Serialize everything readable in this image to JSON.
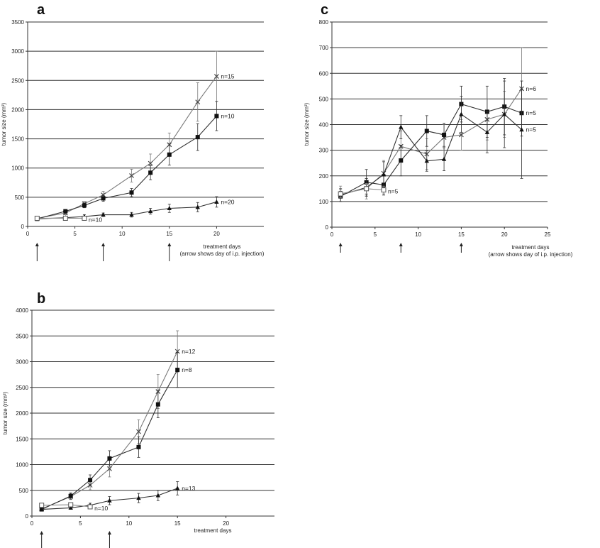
{
  "chart_data": [
    {
      "panel": "a",
      "type": "line",
      "xlabel": "treatment days",
      "note": "(arrow shows day of i.p. injection)",
      "ylabel": "tumor size (mm³)",
      "xlim": [
        0,
        25
      ],
      "ylim": [
        0,
        3500
      ],
      "xticks": [
        0,
        5,
        10,
        15,
        20
      ],
      "yticks": [
        0,
        500,
        1000,
        1500,
        2000,
        2500,
        3000,
        3500
      ],
      "grid": "horizontal",
      "injection_days": [
        1,
        8,
        15
      ],
      "series": [
        {
          "marker": "cross",
          "x": [
            1,
            4,
            6,
            8,
            11,
            13,
            15,
            18,
            20
          ],
          "y": [
            140,
            230,
            390,
            540,
            870,
            1080,
            1400,
            2130,
            2570
          ],
          "err": [
            20,
            30,
            40,
            60,
            110,
            160,
            200,
            330,
            430
          ],
          "end_label": "n=15"
        },
        {
          "marker": "square",
          "x": [
            1,
            4,
            6,
            8,
            11,
            13,
            15,
            18,
            20
          ],
          "y": [
            130,
            260,
            360,
            480,
            580,
            920,
            1230,
            1530,
            1890
          ],
          "err": [
            20,
            30,
            40,
            50,
            70,
            120,
            180,
            230,
            250
          ],
          "end_label": "n=10"
        },
        {
          "marker": "triangle",
          "x": [
            1,
            4,
            6,
            8,
            11,
            13,
            15,
            18,
            20
          ],
          "y": [
            130,
            150,
            170,
            200,
            200,
            260,
            310,
            330,
            420
          ],
          "err": [
            20,
            20,
            30,
            30,
            40,
            50,
            70,
            80,
            90
          ],
          "end_label": "n=20"
        },
        {
          "marker": "open-square",
          "x": [
            1,
            4,
            6
          ],
          "y": [
            140,
            140,
            140
          ],
          "err": [
            20,
            20,
            20
          ],
          "end_label": "n=10"
        }
      ]
    },
    {
      "panel": "b",
      "type": "line",
      "xlabel": "treatment days",
      "ylabel": "tumor size (mm³)",
      "xlim": [
        0,
        25
      ],
      "ylim": [
        0,
        4000
      ],
      "xticks": [
        0,
        5,
        10,
        15,
        20
      ],
      "yticks": [
        0,
        500,
        1000,
        1500,
        2000,
        2500,
        3000,
        3500,
        4000
      ],
      "grid": "horizontal",
      "injection_days": [
        1,
        8
      ],
      "series": [
        {
          "marker": "cross",
          "x": [
            1,
            4,
            6,
            8,
            11,
            13,
            15
          ],
          "y": [
            140,
            380,
            600,
            920,
            1640,
            2420,
            3200
          ],
          "err": [
            40,
            60,
            90,
            160,
            230,
            330,
            400
          ],
          "end_label": "n=12"
        },
        {
          "marker": "square",
          "x": [
            1,
            4,
            6,
            8,
            11,
            13,
            15
          ],
          "y": [
            130,
            390,
            700,
            1120,
            1340,
            2170,
            2840
          ],
          "err": [
            30,
            60,
            100,
            150,
            200,
            260,
            340
          ],
          "end_label": "n=8"
        },
        {
          "marker": "triangle",
          "x": [
            1,
            4,
            6,
            8,
            11,
            13,
            15
          ],
          "y": [
            130,
            160,
            210,
            300,
            350,
            400,
            540
          ],
          "err": [
            20,
            30,
            40,
            80,
            90,
            100,
            130
          ],
          "end_label": "n=13"
        },
        {
          "marker": "open-square",
          "x": [
            1,
            4,
            6
          ],
          "y": [
            210,
            220,
            180
          ],
          "err": [
            40,
            40,
            40
          ],
          "end_label": "n=10"
        }
      ]
    },
    {
      "panel": "c",
      "type": "line",
      "xlabel": "treatment days",
      "note": "(arrow shows day of i.p. injection)",
      "ylabel": "tumor size (mm³)",
      "xlim": [
        0,
        25
      ],
      "ylim": [
        0,
        800
      ],
      "xticks": [
        0,
        5,
        10,
        15,
        20,
        25
      ],
      "yticks": [
        0,
        100,
        200,
        300,
        400,
        500,
        600,
        700,
        800
      ],
      "grid": "horizontal",
      "injection_days": [
        1,
        8,
        15
      ],
      "series": [
        {
          "marker": "cross",
          "x": [
            1,
            4,
            6,
            8,
            11,
            13,
            15,
            18,
            20,
            22
          ],
          "y": [
            130,
            150,
            210,
            315,
            285,
            350,
            360,
            420,
            440,
            540
          ],
          "err": [
            30,
            40,
            50,
            60,
            60,
            50,
            60,
            80,
            90,
            160
          ],
          "end_label": "n=6"
        },
        {
          "marker": "square",
          "x": [
            1,
            4,
            6,
            8,
            11,
            13,
            15,
            18,
            20,
            22
          ],
          "y": [
            120,
            175,
            165,
            260,
            375,
            360,
            480,
            450,
            470,
            445
          ],
          "err": [
            20,
            50,
            40,
            60,
            60,
            45,
            70,
            100,
            110,
            90
          ],
          "end_label": "n=5"
        },
        {
          "marker": "triangle",
          "x": [
            1,
            4,
            6,
            8,
            11,
            13,
            15,
            18,
            20,
            22
          ],
          "y": [
            125,
            155,
            205,
            390,
            258,
            265,
            440,
            370,
            440,
            380
          ],
          "err": [
            25,
            35,
            50,
            45,
            40,
            45,
            70,
            80,
            130,
            190
          ],
          "end_label": "n=5"
        },
        {
          "marker": "open-square",
          "x": [
            1,
            4,
            6
          ],
          "y": [
            130,
            150,
            145
          ],
          "err": [
            15,
            20,
            15
          ],
          "end_label": "n=5"
        }
      ]
    }
  ]
}
